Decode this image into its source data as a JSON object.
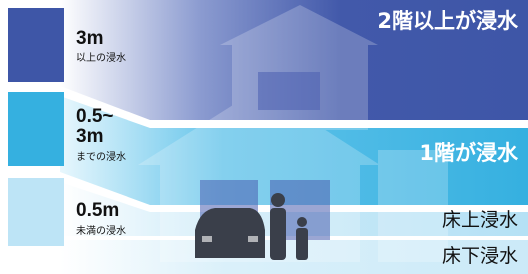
{
  "legend": [
    {
      "depth_lines": [
        "3m"
      ],
      "caption": "以上の浸水"
    },
    {
      "depth_lines": [
        "0.5~",
        "3m"
      ],
      "caption": "までの浸水"
    },
    {
      "depth_lines": [
        "0.5m"
      ],
      "caption": "未満の浸水"
    }
  ],
  "levels": [
    "2階以上が浸水",
    "1階が浸水",
    "床上浸水",
    "床下浸水"
  ]
}
